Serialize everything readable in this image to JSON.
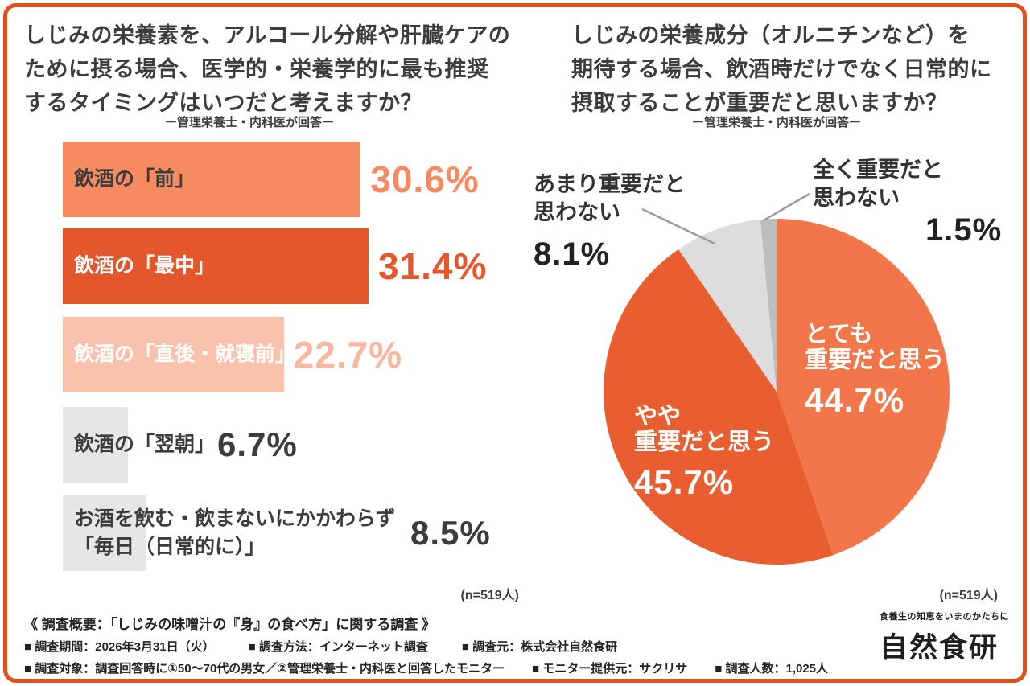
{
  "frame": {
    "border_color": "#E0501F",
    "background": "#FFFFFF"
  },
  "left_chart": {
    "title_lines": [
      "しじみの栄養素を、アルコール分解や肝臓ケアの",
      "ために摂る場合、医学的・栄養学的に最も推奨",
      "するタイミングはいつだと考えますか？"
    ],
    "subtitle": "ー管理栄養士・内科医が回答ー",
    "n_label": "(n=519人)",
    "bars": [
      {
        "label": "飲酒の「前」",
        "value": 30.6,
        "display": "30.6%",
        "bar_color": "#F68B61",
        "text_color": "#3C3C3C",
        "pct_color": "#F68B61"
      },
      {
        "label": "飲酒の「最中」",
        "value": 31.4,
        "display": "31.4%",
        "bar_color": "#E4562B",
        "text_color": "#FFFFFF",
        "pct_color": "#E4562B"
      },
      {
        "label": "飲酒の「直後・就寝前」",
        "value": 22.7,
        "display": "22.7%",
        "bar_color": "#F9C2AD",
        "text_color": "#FFFFFF",
        "pct_color": "#F8B79E"
      },
      {
        "label": "飲酒の「翌朝」",
        "value": 6.7,
        "display": "6.7%",
        "bar_color": "#E6E6E6",
        "text_color": "#3C3C3C",
        "pct_color": "#3C3C3C"
      },
      {
        "label": "お酒を飲む・飲まないにかかわらず",
        "label2": "「毎日（日常的に）」",
        "value": 8.5,
        "display": "8.5%",
        "bar_color": "#E6E6E6",
        "text_color": "#3C3C3C",
        "pct_color": "#3C3C3C"
      }
    ]
  },
  "right_chart": {
    "title_lines": [
      "しじみの栄養成分（オルニチンなど）を",
      "期待する場合、飲酒時だけでなく日常的に",
      "摂取することが重要だと思いますか？"
    ],
    "subtitle": "ー管理栄養士・内科医が回答ー",
    "n_label": "(n=519人)",
    "slices": [
      {
        "name": "とても重要だと思う",
        "value": 44.7,
        "display": "44.7%",
        "color": "#F1764A"
      },
      {
        "name": "やや重要だと思う",
        "value": 45.7,
        "display": "45.7%",
        "color": "#E85E31"
      },
      {
        "name": "あまり重要だと思わない",
        "value": 8.1,
        "display": "8.1%",
        "color": "#DDDDDD"
      },
      {
        "name": "全く重要だと思わない",
        "value": 1.5,
        "display": "1.5%",
        "color": "#BEBEBE"
      }
    ],
    "callout_amari": {
      "line1": "あまり重要だと",
      "line2": "思わない",
      "pct": "8.1%"
    },
    "callout_mattaku": {
      "line1": "全く重要だと",
      "line2": "思わない",
      "pct": "1.5%"
    },
    "inside_totemo": {
      "line1": "とても",
      "line2": "重要だと思う",
      "pct": "44.7%"
    },
    "inside_yaya": {
      "line1": "やや",
      "line2": "重要だと思う",
      "pct": "45.7%"
    }
  },
  "footer": {
    "survey_title": "《 調査概要：「しじみの味噌汁の『身』の食べ方」に関する調査 》",
    "row1": [
      "■ 調査期間：2026年3月31日（火）",
      "■ 調査方法：インターネット調査",
      "■ 調査元：株式会社自然食研"
    ],
    "row2": [
      "■ 調査対象：調査回答時に①50〜70代の男女／②管理栄養士・内科医と回答したモニター",
      "■ モニター提供元：サクリサ",
      "■ 調査人数：1,025人"
    ],
    "logo_tagline": "食養生の知恵をいまのかたちに",
    "logo_name": "自然食研"
  },
  "chart_data": [
    {
      "type": "bar",
      "orientation": "horizontal",
      "title": "しじみの栄養素を、アルコール分解や肝臓ケアのために摂る場合、医学的・栄養学的に最も推奨するタイミングはいつだと考えますか？",
      "subtitle": "ー管理栄養士・内科医が回答ー",
      "categories": [
        "飲酒の「前」",
        "飲酒の「最中」",
        "飲酒の「直後・就寝前」",
        "飲酒の「翌朝」",
        "お酒を飲む・飲まないにかかわらず「毎日（日常的に）」"
      ],
      "values": [
        30.6,
        31.4,
        22.7,
        6.7,
        8.5
      ],
      "unit": "%",
      "n": "n=519人",
      "xlim": [
        0,
        50
      ]
    },
    {
      "type": "pie",
      "title": "しじみの栄養成分（オルニチンなど）を期待する場合、飲酒時だけでなく日常的に摂取することが重要だと思いますか？",
      "subtitle": "ー管理栄養士・内科医が回答ー",
      "categories": [
        "とても重要だと思う",
        "やや重要だと思う",
        "あまり重要だと思わない",
        "全く重要だと思わない"
      ],
      "values": [
        44.7,
        45.7,
        8.1,
        1.5
      ],
      "unit": "%",
      "n": "n=519人",
      "start_angle_deg": 0,
      "direction": "clockwise"
    }
  ]
}
